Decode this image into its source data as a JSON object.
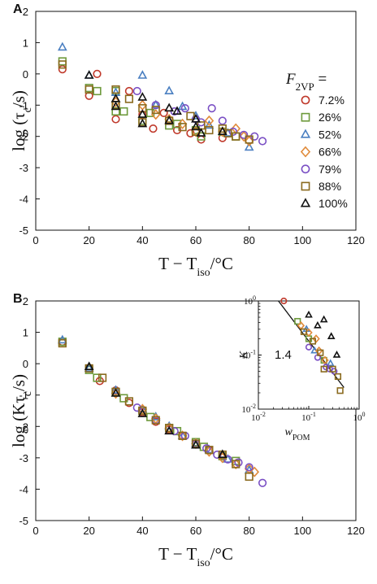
{
  "chart_data": [
    {
      "panel": "A",
      "type": "scatter",
      "xlabel": "T − T_iso/°C",
      "ylabel": "log (τ_c/s)",
      "xlim": [
        0,
        120
      ],
      "ylim": [
        -5,
        2
      ],
      "xticks": [
        "0",
        "20",
        "40",
        "60",
        "80",
        "100",
        "120"
      ],
      "yticks": [
        "2",
        "1",
        "0",
        "-1",
        "-2",
        "-3",
        "-4",
        "-5"
      ],
      "legend_title": "F_2VP =",
      "legend_position": "right",
      "series": [
        {
          "name": "7.2%",
          "marker": "circle",
          "color": "#c0392b",
          "points": [
            [
              10,
              0.15
            ],
            [
              20,
              -0.7
            ],
            [
              23,
              0.0
            ],
            [
              30,
              -1.45
            ],
            [
              35,
              -0.55
            ],
            [
              40,
              -1.3
            ],
            [
              44,
              -1.75
            ],
            [
              48,
              -1.25
            ],
            [
              53,
              -1.8
            ],
            [
              58,
              -1.9
            ],
            [
              62,
              -2.1
            ],
            [
              70,
              -2.05
            ]
          ]
        },
        {
          "name": "26%",
          "marker": "square",
          "color": "#6e9a3c",
          "points": [
            [
              10,
              0.4
            ],
            [
              20,
              -0.45
            ],
            [
              23,
              -0.55
            ],
            [
              30,
              -0.55
            ],
            [
              30,
              -1.2
            ],
            [
              33,
              -1.2
            ],
            [
              40,
              -1.5
            ],
            [
              43,
              -1.25
            ],
            [
              50,
              -1.65
            ],
            [
              53,
              -1.6
            ],
            [
              60,
              -1.8
            ],
            [
              62,
              -2.0
            ],
            [
              70,
              -1.85
            ],
            [
              75,
              -2.0
            ]
          ]
        },
        {
          "name": "52%",
          "marker": "triangle",
          "color": "#4a7fc1",
          "points": [
            [
              10,
              0.85
            ],
            [
              20,
              -0.05
            ],
            [
              30,
              -0.6
            ],
            [
              40,
              -0.05
            ],
            [
              45,
              -1.0
            ],
            [
              50,
              -0.55
            ],
            [
              55,
              -1.05
            ],
            [
              60,
              -1.35
            ],
            [
              65,
              -1.65
            ],
            [
              72,
              -1.9
            ],
            [
              80,
              -2.35
            ]
          ]
        },
        {
          "name": "66%",
          "marker": "diamond",
          "color": "#e08a3a",
          "points": [
            [
              30,
              -0.9
            ],
            [
              40,
              -1.0
            ],
            [
              45,
              -1.3
            ],
            [
              50,
              -1.45
            ],
            [
              55,
              -1.6
            ],
            [
              60,
              -1.85
            ],
            [
              65,
              -1.5
            ],
            [
              70,
              -1.85
            ],
            [
              75,
              -1.75
            ],
            [
              78,
              -2.0
            ],
            [
              80,
              -2.15
            ]
          ]
        },
        {
          "name": "79%",
          "marker": "circle",
          "color": "#7a4fc4",
          "points": [
            [
              38,
              -0.55
            ],
            [
              45,
              -1.0
            ],
            [
              52,
              -1.2
            ],
            [
              56,
              -1.1
            ],
            [
              60,
              -1.45
            ],
            [
              62,
              -1.55
            ],
            [
              66,
              -1.1
            ],
            [
              70,
              -1.5
            ],
            [
              74,
              -1.85
            ],
            [
              78,
              -1.95
            ],
            [
              82,
              -2.0
            ],
            [
              85,
              -2.15
            ]
          ]
        },
        {
          "name": "88%",
          "marker": "square",
          "color": "#8a6a1e",
          "points": [
            [
              10,
              0.3
            ],
            [
              20,
              -0.5
            ],
            [
              30,
              -0.5
            ],
            [
              30,
              -1.0
            ],
            [
              35,
              -0.8
            ],
            [
              40,
              -1.1
            ],
            [
              40,
              -1.55
            ],
            [
              45,
              -1.15
            ],
            [
              50,
              -1.5
            ],
            [
              55,
              -1.7
            ],
            [
              58,
              -1.35
            ],
            [
              60,
              -1.85
            ],
            [
              62,
              -1.65
            ],
            [
              65,
              -1.8
            ],
            [
              70,
              -1.75
            ],
            [
              72,
              -1.9
            ],
            [
              75,
              -2.0
            ],
            [
              80,
              -2.1
            ]
          ]
        },
        {
          "name": "100%",
          "marker": "triangle",
          "color": "#111111",
          "points": [
            [
              20,
              -0.05
            ],
            [
              30,
              -1.05
            ],
            [
              30,
              -0.8
            ],
            [
              40,
              -0.75
            ],
            [
              40,
              -1.3
            ],
            [
              40,
              -1.6
            ],
            [
              50,
              -1.1
            ],
            [
              50,
              -1.5
            ],
            [
              53,
              -1.2
            ],
            [
              60,
              -1.45
            ],
            [
              60,
              -1.7
            ],
            [
              62,
              -1.9
            ],
            [
              70,
              -1.85
            ]
          ]
        }
      ]
    },
    {
      "panel": "B",
      "type": "scatter",
      "xlabel": "T − T_iso/°C",
      "ylabel": "log (Kτ_c/s)",
      "xlim": [
        0,
        120
      ],
      "ylim": [
        -5,
        2
      ],
      "xticks": [
        "0",
        "20",
        "40",
        "60",
        "80",
        "100",
        "120"
      ],
      "yticks": [
        "2",
        "1",
        "0",
        "-1",
        "-2",
        "-3",
        "-4",
        "-5"
      ],
      "series": [
        {
          "name": "7.2%",
          "points": [
            [
              10,
              0.7
            ],
            [
              20,
              -0.15
            ],
            [
              24,
              -0.55
            ],
            [
              30,
              -0.85
            ],
            [
              35,
              -1.25
            ],
            [
              40,
              -1.55
            ],
            [
              45,
              -1.85
            ],
            [
              50,
              -2.1
            ],
            [
              55,
              -2.3
            ],
            [
              60,
              -2.55
            ],
            [
              65,
              -2.75
            ],
            [
              70,
              -2.95
            ]
          ]
        },
        {
          "name": "26%",
          "points": [
            [
              10,
              0.7
            ],
            [
              20,
              -0.2
            ],
            [
              23,
              -0.45
            ],
            [
              30,
              -0.9
            ],
            [
              33,
              -1.1
            ],
            [
              40,
              -1.5
            ],
            [
              43,
              -1.7
            ],
            [
              50,
              -2.05
            ],
            [
              53,
              -2.15
            ],
            [
              60,
              -2.5
            ],
            [
              63,
              -2.65
            ],
            [
              70,
              -2.95
            ],
            [
              75,
              -3.1
            ]
          ]
        },
        {
          "name": "52%",
          "points": [
            [
              10,
              0.75
            ],
            [
              20,
              -0.15
            ],
            [
              30,
              -0.85
            ],
            [
              40,
              -1.45
            ],
            [
              45,
              -1.7
            ],
            [
              50,
              -2.0
            ],
            [
              55,
              -2.3
            ],
            [
              60,
              -2.55
            ],
            [
              65,
              -2.75
            ],
            [
              72,
              -3.05
            ],
            [
              80,
              -3.4
            ]
          ]
        },
        {
          "name": "66%",
          "points": [
            [
              30,
              -0.95
            ],
            [
              40,
              -1.45
            ],
            [
              45,
              -1.75
            ],
            [
              50,
              -2.05
            ],
            [
              55,
              -2.3
            ],
            [
              60,
              -2.55
            ],
            [
              65,
              -2.8
            ],
            [
              70,
              -3.0
            ],
            [
              75,
              -3.2
            ],
            [
              80,
              -3.35
            ],
            [
              82,
              -3.45
            ]
          ]
        },
        {
          "name": "79%",
          "points": [
            [
              38,
              -1.4
            ],
            [
              45,
              -1.8
            ],
            [
              52,
              -2.15
            ],
            [
              56,
              -2.3
            ],
            [
              60,
              -2.55
            ],
            [
              64,
              -2.7
            ],
            [
              68,
              -2.9
            ],
            [
              72,
              -3.05
            ],
            [
              76,
              -3.15
            ],
            [
              80,
              -3.3
            ],
            [
              85,
              -3.8
            ]
          ]
        },
        {
          "name": "88%",
          "points": [
            [
              10,
              0.65
            ],
            [
              20,
              -0.15
            ],
            [
              25,
              -0.45
            ],
            [
              30,
              -0.9
            ],
            [
              35,
              -1.2
            ],
            [
              40,
              -1.5
            ],
            [
              45,
              -1.8
            ],
            [
              50,
              -2.05
            ],
            [
              55,
              -2.3
            ],
            [
              60,
              -2.55
            ],
            [
              65,
              -2.75
            ],
            [
              70,
              -2.9
            ],
            [
              75,
              -3.2
            ],
            [
              80,
              -3.6
            ]
          ]
        },
        {
          "name": "100%",
          "points": [
            [
              20,
              -0.1
            ],
            [
              30,
              -0.95
            ],
            [
              40,
              -1.6
            ],
            [
              50,
              -2.15
            ],
            [
              60,
              -2.6
            ],
            [
              70,
              -2.9
            ]
          ]
        }
      ]
    },
    {
      "panel": "B-inset",
      "type": "scatter",
      "xlabel": "w_POM",
      "ylabel": "K",
      "xscale": "log",
      "yscale": "log",
      "xlim": [
        0.01,
        1
      ],
      "ylim": [
        0.01,
        1
      ],
      "xticks": [
        "10^-2",
        "10^-1",
        "10^0"
      ],
      "yticks": [
        "10^0",
        "10^-1",
        "10^-2"
      ],
      "annotation": "1.4",
      "fit_line": {
        "x": [
          0.025,
          0.5
        ],
        "y": [
          1.0,
          0.025
        ]
      },
      "series": [
        {
          "name": "7.2%",
          "points": [
            [
              0.032,
              1.0
            ]
          ]
        },
        {
          "name": "26%",
          "points": [
            [
              0.06,
              0.42
            ],
            [
              0.1,
              0.2
            ],
            [
              0.2,
              0.08
            ]
          ]
        },
        {
          "name": "52%",
          "points": [
            [
              0.09,
              0.3
            ],
            [
              0.13,
              0.12
            ],
            [
              0.27,
              0.07
            ]
          ]
        },
        {
          "name": "66%",
          "points": [
            [
              0.07,
              0.35
            ],
            [
              0.1,
              0.26
            ],
            [
              0.14,
              0.2
            ],
            [
              0.16,
              0.12
            ],
            [
              0.21,
              0.08
            ]
          ]
        },
        {
          "name": "79%",
          "points": [
            [
              0.1,
              0.14
            ],
            [
              0.15,
              0.09
            ],
            [
              0.22,
              0.06
            ],
            [
              0.26,
              0.055
            ],
            [
              0.32,
              0.05
            ]
          ]
        },
        {
          "name": "88%",
          "points": [
            [
              0.08,
              0.27
            ],
            [
              0.12,
              0.18
            ],
            [
              0.17,
              0.11
            ],
            [
              0.2,
              0.055
            ],
            [
              0.3,
              0.055
            ],
            [
              0.38,
              0.04
            ],
            [
              0.42,
              0.022
            ]
          ]
        },
        {
          "name": "100%",
          "points": [
            [
              0.1,
              0.55
            ],
            [
              0.15,
              0.35
            ],
            [
              0.2,
              0.45
            ],
            [
              0.28,
              0.22
            ],
            [
              0.36,
              0.1
            ]
          ]
        }
      ]
    }
  ]
}
